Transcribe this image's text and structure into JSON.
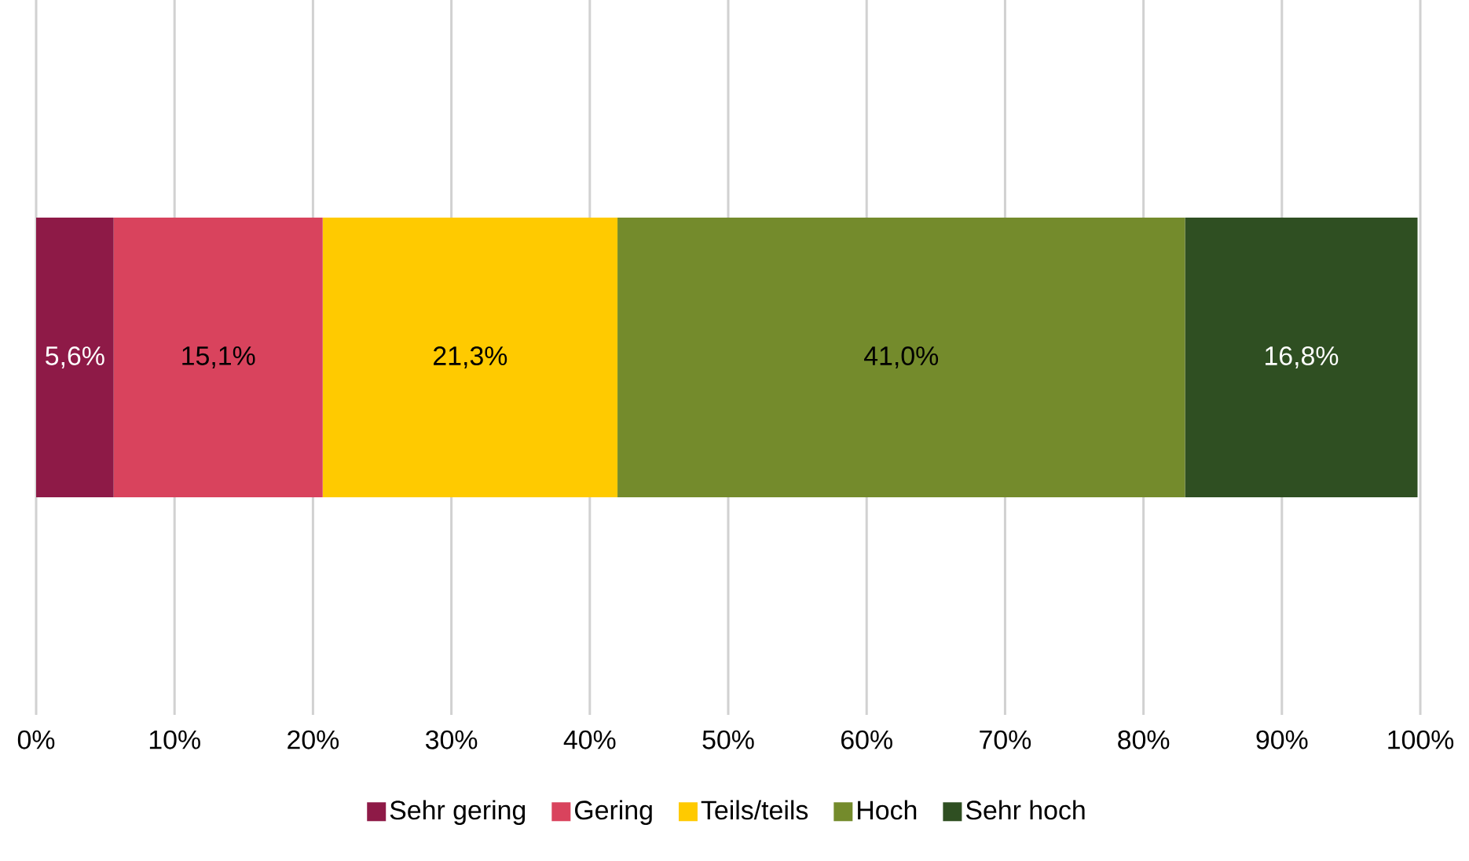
{
  "chart_data": {
    "type": "bar",
    "orientation": "horizontal",
    "stacked": true,
    "categories": [
      null
    ],
    "series": [
      {
        "name": "Sehr gering",
        "color": "#8e1a47",
        "values": [
          5.6
        ],
        "value_labels": [
          "5,6%"
        ]
      },
      {
        "name": "Gering",
        "color": "#d9435d",
        "values": [
          15.1
        ],
        "value_labels": [
          "15,1%"
        ]
      },
      {
        "name": "Teils/teils",
        "color": "#ffca00",
        "values": [
          21.3
        ],
        "value_labels": [
          "21,3%"
        ]
      },
      {
        "name": "Hoch",
        "color": "#748b2c",
        "values": [
          41.0
        ],
        "value_labels": [
          "41,0%"
        ]
      },
      {
        "name": "Sehr hoch",
        "color": "#2f4f22",
        "values": [
          16.8
        ],
        "value_labels": [
          "16,8%"
        ]
      }
    ],
    "xlim": [
      0,
      100
    ],
    "xticks": [
      {
        "value": 0,
        "label": "0%"
      },
      {
        "value": 10,
        "label": "10%"
      },
      {
        "value": 20,
        "label": "20%"
      },
      {
        "value": 30,
        "label": "30%"
      },
      {
        "value": 40,
        "label": "40%"
      },
      {
        "value": 50,
        "label": "50%"
      },
      {
        "value": 60,
        "label": "60%"
      },
      {
        "value": 70,
        "label": "70%"
      },
      {
        "value": 80,
        "label": "80%"
      },
      {
        "value": 90,
        "label": "90%"
      },
      {
        "value": 100,
        "label": "100%"
      }
    ],
    "grid": "x",
    "legend": "bottom"
  }
}
